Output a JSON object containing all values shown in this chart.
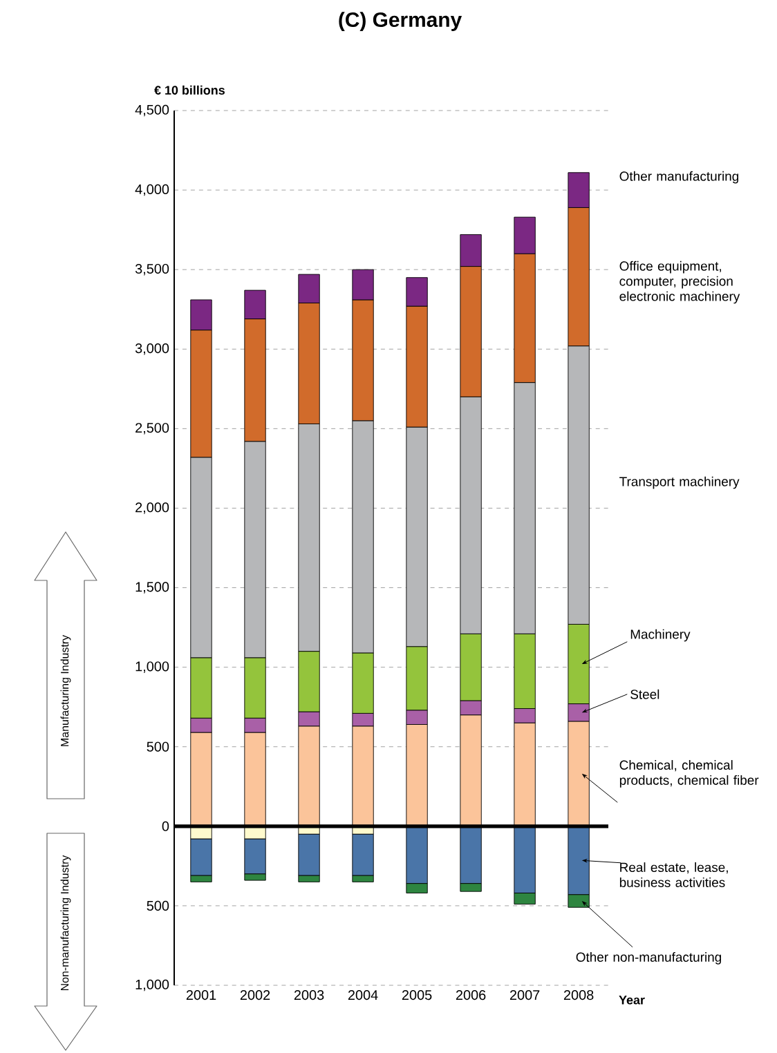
{
  "chart_data": {
    "type": "bar",
    "title": "(C) Germany",
    "ylabel": "€ 10 billions",
    "xlabel": "Year",
    "stacked": true,
    "grid": "y",
    "legend": "right",
    "categories": [
      "2001",
      "2002",
      "2003",
      "2004",
      "2005",
      "2006",
      "2007",
      "2008"
    ],
    "ylim": [
      -1000,
      4500
    ],
    "yticks": [
      {
        "value": -1000,
        "label": "1,000"
      },
      {
        "value": -500,
        "label": "500"
      },
      0,
      500,
      {
        "value": 1000,
        "label": "1,000"
      },
      {
        "value": 1500,
        "label": "1,500"
      },
      {
        "value": 2000,
        "label": "2,000"
      },
      {
        "value": 2500,
        "label": "2,500"
      },
      {
        "value": 3000,
        "label": "3,000"
      },
      {
        "value": 3500,
        "label": "3,500"
      },
      {
        "value": 4000,
        "label": "4,000"
      },
      {
        "value": 4500,
        "label": "4,500"
      }
    ],
    "ref_lines": [
      {
        "axis": "y",
        "value": 0,
        "color": "#000000"
      }
    ],
    "annotations": [
      "Manufacturing Industry",
      "Non-manufacturing Industry"
    ],
    "series": [
      {
        "name": "Chemical, chemical products, chemical fiber",
        "color": "#fbc49a",
        "values": [
          590,
          590,
          630,
          630,
          640,
          700,
          650,
          660
        ]
      },
      {
        "name": "Steel",
        "color": "#a960a7",
        "values": [
          90,
          90,
          90,
          80,
          90,
          90,
          90,
          110
        ]
      },
      {
        "name": "Machinery",
        "color": "#94c43c",
        "values": [
          380,
          380,
          380,
          380,
          400,
          420,
          470,
          500
        ]
      },
      {
        "name": "Transport machinery",
        "color": "#b6b7b9",
        "values": [
          1260,
          1360,
          1430,
          1460,
          1380,
          1490,
          1580,
          1750
        ]
      },
      {
        "name": "Office equipment, computer, precision electronic machinery",
        "color": "#d16b2b",
        "values": [
          800,
          770,
          760,
          760,
          760,
          820,
          810,
          870
        ]
      },
      {
        "name": "Other manufacturing",
        "color": "#7b2883",
        "values": [
          190,
          180,
          180,
          190,
          180,
          200,
          230,
          220
        ]
      },
      {
        "color": "#fffacd",
        "values": [
          -80,
          -80,
          -50,
          -50,
          null,
          null,
          null,
          null
        ]
      },
      {
        "name": "Real estate, lease, business activities",
        "color": "#4a75a8",
        "values": [
          -230,
          -220,
          -260,
          -260,
          -360,
          -360,
          -420,
          -430
        ]
      },
      {
        "name": "Other non-manufacturing",
        "color": "#2e8540",
        "values": [
          -40,
          -40,
          -40,
          -40,
          -60,
          -50,
          -70,
          -80
        ]
      }
    ]
  }
}
